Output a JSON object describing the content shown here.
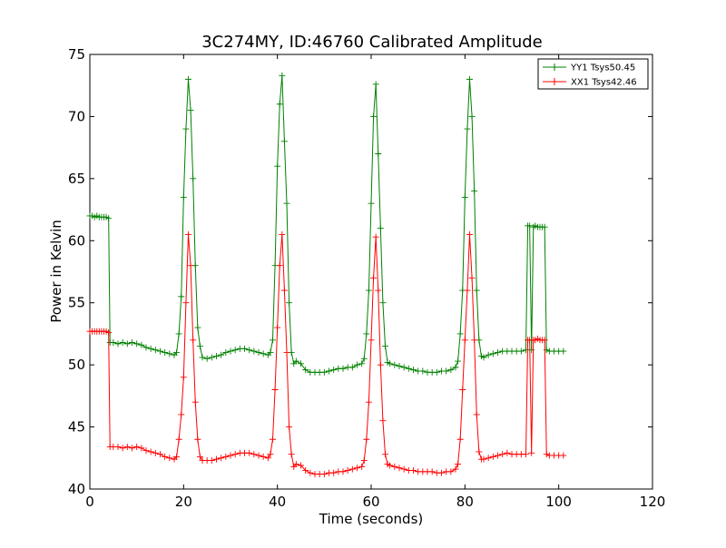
{
  "chart_data": {
    "type": "line",
    "title": "3C274MY, ID:46760 Calibrated Amplitude",
    "xlabel": "Time (seconds)",
    "ylabel": "Power in Kelvin",
    "xlim": [
      0,
      120
    ],
    "ylim": [
      40,
      75
    ],
    "x_ticks": [
      "0",
      "20",
      "40",
      "60",
      "80",
      "100",
      "120"
    ],
    "y_ticks": [
      "40",
      "45",
      "50",
      "55",
      "60",
      "65",
      "70",
      "75"
    ],
    "grid": false,
    "legend": {
      "placement": "top-right"
    },
    "series": [
      {
        "name": "YY1 Tsys50.45",
        "color": "#008000",
        "marker": "+",
        "points": [
          [
            0,
            62.0
          ],
          [
            0.5,
            62.0
          ],
          [
            1,
            61.9
          ],
          [
            1.5,
            62.0
          ],
          [
            2,
            61.9
          ],
          [
            2.5,
            61.9
          ],
          [
            3,
            61.9
          ],
          [
            3.5,
            61.9
          ],
          [
            4,
            61.8
          ],
          [
            4.3,
            51.8
          ],
          [
            5,
            51.8
          ],
          [
            6,
            51.7
          ],
          [
            7,
            51.8
          ],
          [
            8,
            51.7
          ],
          [
            9,
            51.8
          ],
          [
            10,
            51.7
          ],
          [
            11,
            51.6
          ],
          [
            12,
            51.4
          ],
          [
            13,
            51.3
          ],
          [
            14,
            51.2
          ],
          [
            15,
            51.1
          ],
          [
            16,
            51.0
          ],
          [
            17,
            50.9
          ],
          [
            18,
            50.8
          ],
          [
            18.5,
            51.0
          ],
          [
            19,
            52.5
          ],
          [
            19.5,
            55.5
          ],
          [
            20,
            63.5
          ],
          [
            20.5,
            69.0
          ],
          [
            21,
            73.0
          ],
          [
            21.5,
            70.5
          ],
          [
            22,
            65.0
          ],
          [
            22.5,
            58.0
          ],
          [
            23,
            53.0
          ],
          [
            23.5,
            51.5
          ],
          [
            24,
            50.6
          ],
          [
            25,
            50.5
          ],
          [
            26,
            50.6
          ],
          [
            27,
            50.7
          ],
          [
            28,
            50.8
          ],
          [
            29,
            51.0
          ],
          [
            30,
            51.1
          ],
          [
            31,
            51.2
          ],
          [
            32,
            51.3
          ],
          [
            33,
            51.3
          ],
          [
            34,
            51.2
          ],
          [
            35,
            51.1
          ],
          [
            36,
            51.0
          ],
          [
            37,
            50.9
          ],
          [
            38,
            50.8
          ],
          [
            38.5,
            51.0
          ],
          [
            39,
            52.0
          ],
          [
            39.5,
            58.0
          ],
          [
            40,
            66.0
          ],
          [
            40.5,
            71.0
          ],
          [
            41,
            73.3
          ],
          [
            41.5,
            68.0
          ],
          [
            42,
            63.0
          ],
          [
            42.5,
            55.0
          ],
          [
            43,
            51.0
          ],
          [
            43.5,
            50.1
          ],
          [
            44,
            50.3
          ],
          [
            45,
            50.1
          ],
          [
            46,
            49.6
          ],
          [
            47,
            49.4
          ],
          [
            48,
            49.4
          ],
          [
            49,
            49.4
          ],
          [
            50,
            49.4
          ],
          [
            51,
            49.5
          ],
          [
            52,
            49.6
          ],
          [
            53,
            49.7
          ],
          [
            54,
            49.7
          ],
          [
            55,
            49.8
          ],
          [
            56,
            49.8
          ],
          [
            57,
            50.0
          ],
          [
            58,
            50.1
          ],
          [
            58.5,
            50.5
          ],
          [
            59,
            52.5
          ],
          [
            59.5,
            56.0
          ],
          [
            60,
            63.0
          ],
          [
            60.5,
            70.0
          ],
          [
            61,
            72.6
          ],
          [
            61.5,
            67.0
          ],
          [
            62,
            61.0
          ],
          [
            62.5,
            55.0
          ],
          [
            63,
            51.5
          ],
          [
            63.5,
            50.2
          ],
          [
            64,
            50.1
          ],
          [
            65,
            50.0
          ],
          [
            66,
            49.9
          ],
          [
            67,
            49.8
          ],
          [
            68,
            49.7
          ],
          [
            69,
            49.6
          ],
          [
            70,
            49.5
          ],
          [
            71,
            49.5
          ],
          [
            72,
            49.4
          ],
          [
            73,
            49.4
          ],
          [
            74,
            49.4
          ],
          [
            75,
            49.5
          ],
          [
            76,
            49.5
          ],
          [
            77,
            49.6
          ],
          [
            78,
            49.8
          ],
          [
            78.5,
            50.3
          ],
          [
            79,
            52.5
          ],
          [
            79.5,
            56.0
          ],
          [
            80,
            63.5
          ],
          [
            80.5,
            69.0
          ],
          [
            81,
            73.0
          ],
          [
            81.5,
            70.0
          ],
          [
            82,
            64.0
          ],
          [
            82.5,
            56.0
          ],
          [
            83,
            52.0
          ],
          [
            83.5,
            50.7
          ],
          [
            84,
            50.6
          ],
          [
            85,
            50.8
          ],
          [
            86,
            50.9
          ],
          [
            87,
            51.0
          ],
          [
            88,
            51.1
          ],
          [
            89,
            51.1
          ],
          [
            90,
            51.1
          ],
          [
            91,
            51.1
          ],
          [
            92,
            51.1
          ],
          [
            93,
            51.2
          ],
          [
            93.4,
            61.2
          ],
          [
            93.8,
            61.2
          ],
          [
            94.2,
            51.2
          ],
          [
            94.6,
            61.1
          ],
          [
            95,
            61.2
          ],
          [
            95.5,
            61.1
          ],
          [
            96,
            61.1
          ],
          [
            96.5,
            61.1
          ],
          [
            97,
            61.1
          ],
          [
            97.4,
            51.2
          ],
          [
            98,
            51.1
          ],
          [
            99,
            51.1
          ],
          [
            100,
            51.1
          ],
          [
            101,
            51.1
          ]
        ]
      },
      {
        "name": "XX1 Tsys42.46",
        "color": "#ff0000",
        "marker": "+",
        "points": [
          [
            0,
            52.7
          ],
          [
            0.5,
            52.7
          ],
          [
            1,
            52.7
          ],
          [
            1.5,
            52.7
          ],
          [
            2,
            52.7
          ],
          [
            2.5,
            52.7
          ],
          [
            3,
            52.7
          ],
          [
            3.5,
            52.7
          ],
          [
            4,
            52.6
          ],
          [
            4.3,
            43.4
          ],
          [
            5,
            43.4
          ],
          [
            6,
            43.4
          ],
          [
            7,
            43.3
          ],
          [
            8,
            43.4
          ],
          [
            9,
            43.3
          ],
          [
            10,
            43.4
          ],
          [
            11,
            43.3
          ],
          [
            12,
            43.1
          ],
          [
            13,
            43.0
          ],
          [
            14,
            42.9
          ],
          [
            15,
            42.8
          ],
          [
            16,
            42.6
          ],
          [
            17,
            42.5
          ],
          [
            18,
            42.4
          ],
          [
            18.5,
            42.6
          ],
          [
            19,
            44.0
          ],
          [
            19.5,
            46.0
          ],
          [
            20,
            49.0
          ],
          [
            20.5,
            55.0
          ],
          [
            21,
            60.5
          ],
          [
            21.5,
            58.0
          ],
          [
            22,
            52.0
          ],
          [
            22.5,
            47.0
          ],
          [
            23,
            44.0
          ],
          [
            23.5,
            42.6
          ],
          [
            24,
            42.3
          ],
          [
            25,
            42.3
          ],
          [
            26,
            42.3
          ],
          [
            27,
            42.4
          ],
          [
            28,
            42.5
          ],
          [
            29,
            42.6
          ],
          [
            30,
            42.7
          ],
          [
            31,
            42.8
          ],
          [
            32,
            42.9
          ],
          [
            33,
            42.9
          ],
          [
            34,
            42.9
          ],
          [
            35,
            42.8
          ],
          [
            36,
            42.7
          ],
          [
            37,
            42.6
          ],
          [
            38,
            42.5
          ],
          [
            38.5,
            42.8
          ],
          [
            39,
            44.0
          ],
          [
            39.5,
            48.0
          ],
          [
            40,
            53.0
          ],
          [
            40.5,
            58.0
          ],
          [
            41,
            60.5
          ],
          [
            41.5,
            56.0
          ],
          [
            42,
            51.0
          ],
          [
            42.5,
            45.0
          ],
          [
            43,
            42.8
          ],
          [
            43.5,
            41.8
          ],
          [
            44,
            42.0
          ],
          [
            45,
            41.9
          ],
          [
            46,
            41.5
          ],
          [
            47,
            41.3
          ],
          [
            48,
            41.2
          ],
          [
            49,
            41.2
          ],
          [
            50,
            41.2
          ],
          [
            51,
            41.3
          ],
          [
            52,
            41.3
          ],
          [
            53,
            41.4
          ],
          [
            54,
            41.4
          ],
          [
            55,
            41.5
          ],
          [
            56,
            41.6
          ],
          [
            57,
            41.7
          ],
          [
            58,
            41.8
          ],
          [
            58.5,
            42.3
          ],
          [
            59,
            44.0
          ],
          [
            59.5,
            47.0
          ],
          [
            60,
            52.0
          ],
          [
            60.5,
            57.0
          ],
          [
            61,
            60.3
          ],
          [
            61.5,
            56.0
          ],
          [
            62,
            50.0
          ],
          [
            62.5,
            45.5
          ],
          [
            63,
            42.8
          ],
          [
            63.5,
            42.0
          ],
          [
            64,
            41.9
          ],
          [
            65,
            41.8
          ],
          [
            66,
            41.7
          ],
          [
            67,
            41.6
          ],
          [
            68,
            41.5
          ],
          [
            69,
            41.5
          ],
          [
            70,
            41.4
          ],
          [
            71,
            41.4
          ],
          [
            72,
            41.4
          ],
          [
            73,
            41.4
          ],
          [
            74,
            41.3
          ],
          [
            75,
            41.3
          ],
          [
            76,
            41.4
          ],
          [
            77,
            41.4
          ],
          [
            78,
            41.6
          ],
          [
            78.5,
            42.0
          ],
          [
            79,
            44.0
          ],
          [
            79.5,
            48.0
          ],
          [
            80,
            52.0
          ],
          [
            80.5,
            56.0
          ],
          [
            81,
            60.5
          ],
          [
            81.5,
            57.0
          ],
          [
            82,
            52.0
          ],
          [
            82.5,
            46.0
          ],
          [
            83,
            43.0
          ],
          [
            83.5,
            42.4
          ],
          [
            84,
            42.4
          ],
          [
            85,
            42.5
          ],
          [
            86,
            42.6
          ],
          [
            87,
            42.7
          ],
          [
            88,
            42.8
          ],
          [
            89,
            42.9
          ],
          [
            90,
            42.8
          ],
          [
            91,
            42.8
          ],
          [
            92,
            42.8
          ],
          [
            93,
            42.8
          ],
          [
            93.4,
            52.0
          ],
          [
            93.8,
            52.0
          ],
          [
            94.2,
            42.9
          ],
          [
            94.6,
            52.0
          ],
          [
            95,
            52.0
          ],
          [
            95.5,
            52.1
          ],
          [
            96,
            52.0
          ],
          [
            96.5,
            52.0
          ],
          [
            97,
            52.0
          ],
          [
            97.4,
            42.8
          ],
          [
            98,
            42.7
          ],
          [
            99,
            42.7
          ],
          [
            100,
            42.7
          ],
          [
            101,
            42.7
          ]
        ]
      }
    ]
  }
}
